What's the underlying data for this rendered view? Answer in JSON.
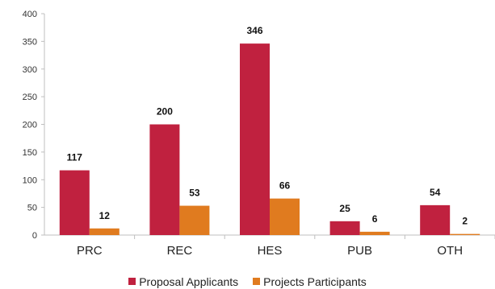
{
  "chart_data": {
    "type": "bar",
    "categories": [
      "PRC",
      "REC",
      "HES",
      "PUB",
      "OTH"
    ],
    "series": [
      {
        "name": "Proposal Applicants",
        "values": [
          117,
          200,
          346,
          25,
          54
        ],
        "color": "#c0213f"
      },
      {
        "name": "Projects  Participants",
        "values": [
          12,
          53,
          66,
          6,
          2
        ],
        "color": "#e07b1f"
      }
    ],
    "ylim": [
      0,
      400
    ],
    "yticks": [
      0,
      50,
      100,
      150,
      200,
      250,
      300,
      350,
      400
    ],
    "grid": false,
    "legend": "bottom"
  },
  "colors": {
    "axis": "#bfbfbf",
    "text": "#222222"
  }
}
